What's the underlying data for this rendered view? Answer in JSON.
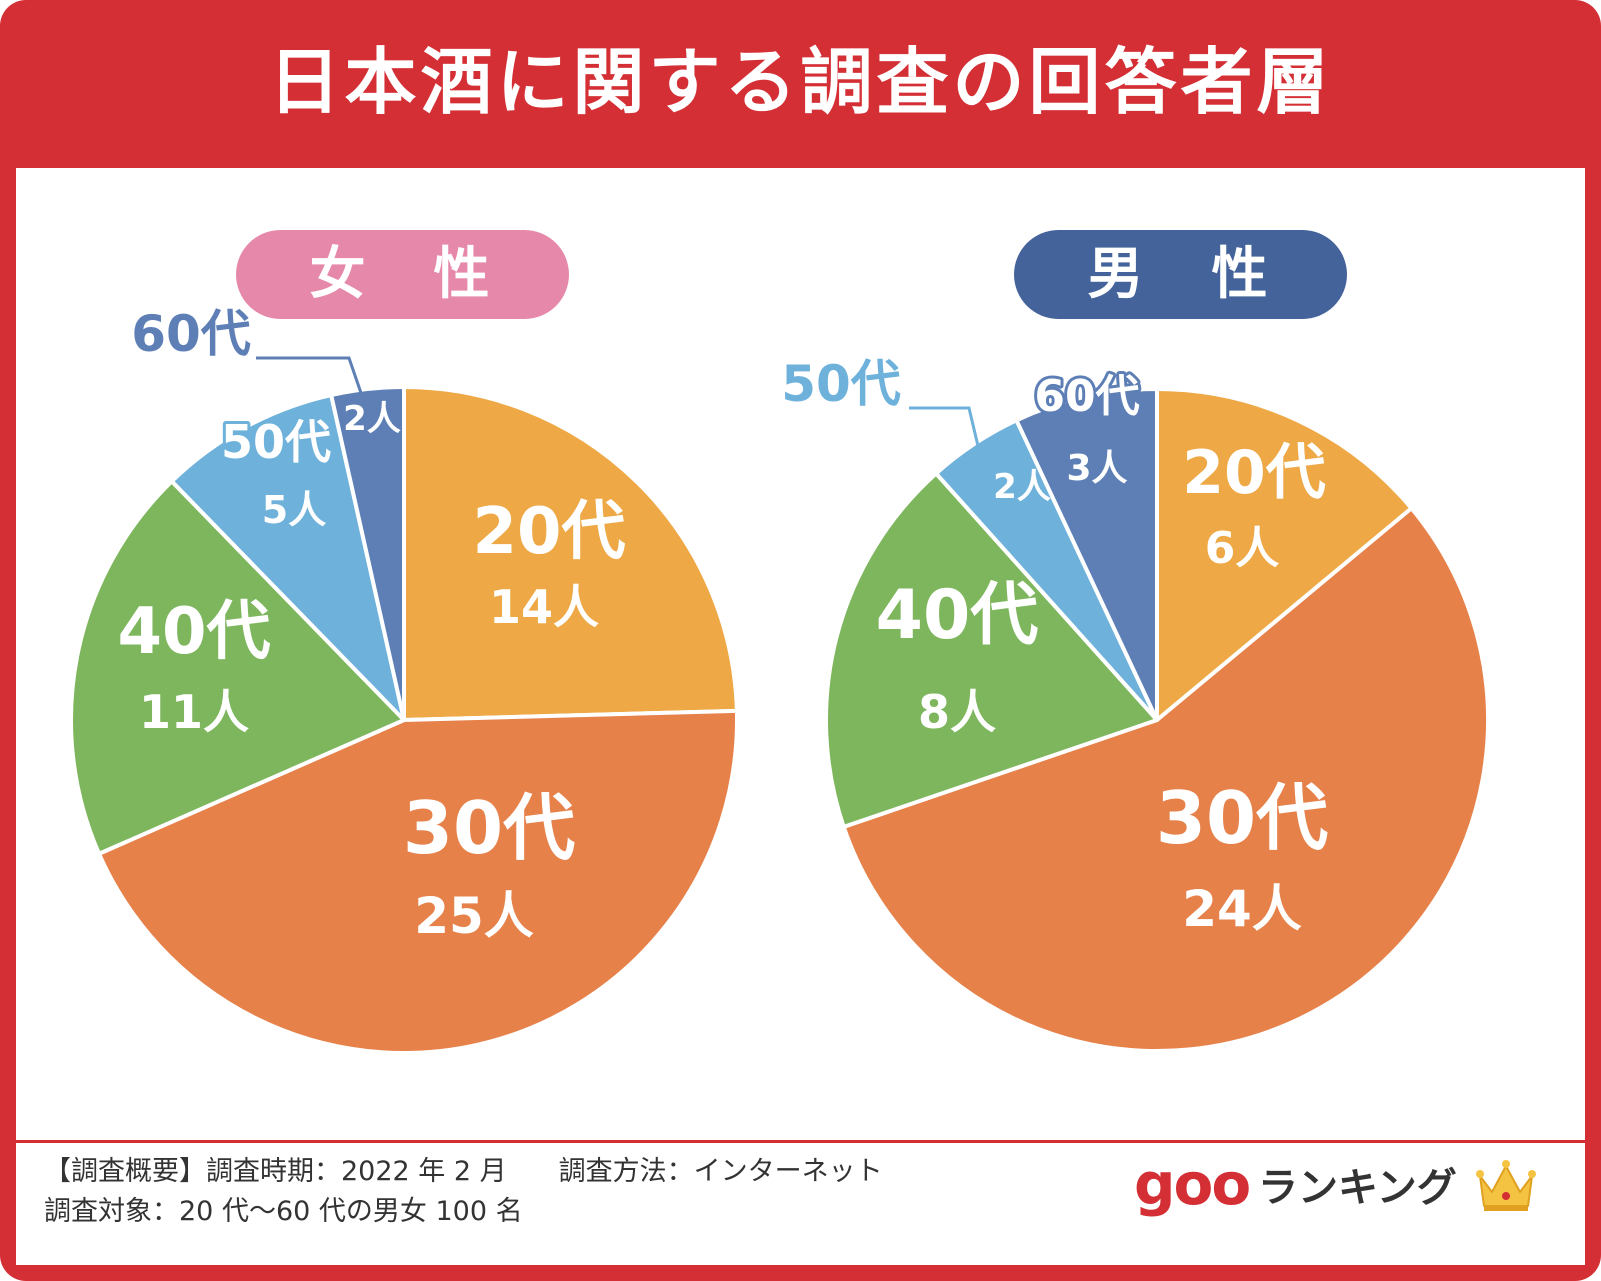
{
  "title": "日本酒に関する調査の回答者層",
  "colors": {
    "frame": "#d42f35",
    "female_pill": "#e688aa",
    "male_pill": "#45639b",
    "20s": "#eea845",
    "30s": "#e6814a",
    "40s": "#7eb65e",
    "50s": "#6eb1db",
    "60s": "#5d7fb6"
  },
  "chart_data": [
    {
      "type": "pie",
      "title": "女　性",
      "labels": [
        "20代",
        "30代",
        "40代",
        "50代",
        "60代"
      ],
      "values": [
        14,
        25,
        11,
        5,
        2
      ],
      "value_labels": [
        "14人",
        "25人",
        "11人",
        "5人",
        "2人"
      ]
    },
    {
      "type": "pie",
      "title": "男　性",
      "labels": [
        "20代",
        "30代",
        "40代",
        "50代",
        "60代"
      ],
      "values": [
        6,
        24,
        8,
        2,
        3
      ],
      "value_labels": [
        "6人",
        "24人",
        "8人",
        "2人",
        "3人"
      ]
    }
  ],
  "footer": {
    "line1_a": "【調査概要】調査時期：2022 年 2 月",
    "line1_b": "調査方法：インターネット",
    "line2": "調査対象：20 代〜60 代の男女 100 名"
  },
  "logo": {
    "brand": "goo",
    "text": "ランキング",
    "icon": "crown-icon"
  }
}
